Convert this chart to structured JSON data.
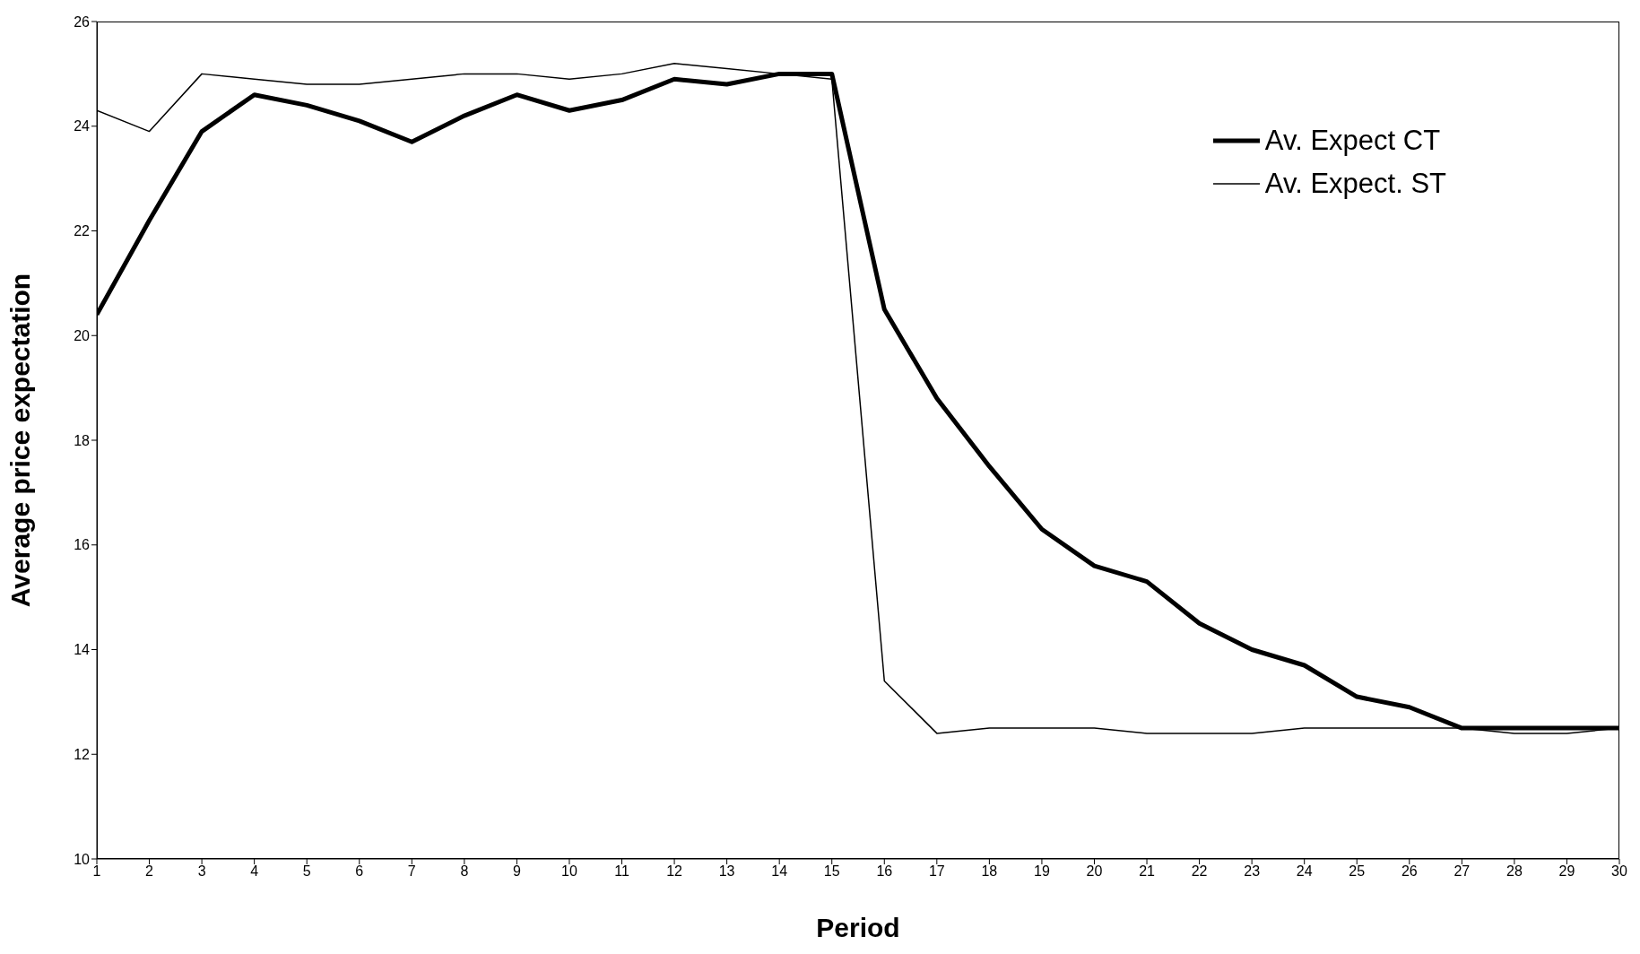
{
  "chart_data": {
    "type": "line",
    "xlabel": "Period",
    "ylabel": "Average price expectation",
    "x": [
      1,
      2,
      3,
      4,
      5,
      6,
      7,
      8,
      9,
      10,
      11,
      12,
      13,
      14,
      15,
      16,
      17,
      18,
      19,
      20,
      21,
      22,
      23,
      24,
      25,
      26,
      27,
      28,
      29,
      30
    ],
    "xlim": [
      1,
      30
    ],
    "xticks": [
      1,
      2,
      3,
      4,
      5,
      6,
      7,
      8,
      9,
      10,
      11,
      12,
      13,
      14,
      15,
      16,
      17,
      18,
      19,
      20,
      21,
      22,
      23,
      24,
      25,
      26,
      27,
      28,
      29,
      30
    ],
    "ylim": [
      10,
      26
    ],
    "yticks": [
      10,
      12,
      14,
      16,
      18,
      20,
      22,
      24,
      26
    ],
    "legend": "top right",
    "marker": "none",
    "line_style": "solid",
    "series": [
      {
        "name": "Av. Expect CT",
        "color": "#000000",
        "values": [
          20.4,
          22.2,
          23.9,
          24.6,
          24.4,
          24.1,
          23.7,
          24.2,
          24.6,
          24.3,
          24.5,
          24.9,
          24.8,
          25.0,
          25.0,
          20.5,
          18.8,
          17.5,
          16.3,
          15.6,
          15.3,
          14.5,
          14.0,
          13.7,
          13.1,
          12.9,
          12.5,
          12.5,
          12.5,
          12.5
        ]
      },
      {
        "name": "Av. Expect. ST",
        "color": "#000000",
        "values": [
          24.3,
          23.9,
          25.0,
          24.9,
          24.8,
          24.8,
          24.9,
          25.0,
          25.0,
          24.9,
          25.0,
          25.2,
          25.1,
          25.0,
          24.9,
          13.4,
          12.4,
          12.5,
          12.5,
          12.5,
          12.4,
          12.4,
          12.4,
          12.5,
          12.5,
          12.5,
          12.5,
          12.4,
          12.4,
          12.5
        ]
      }
    ]
  }
}
